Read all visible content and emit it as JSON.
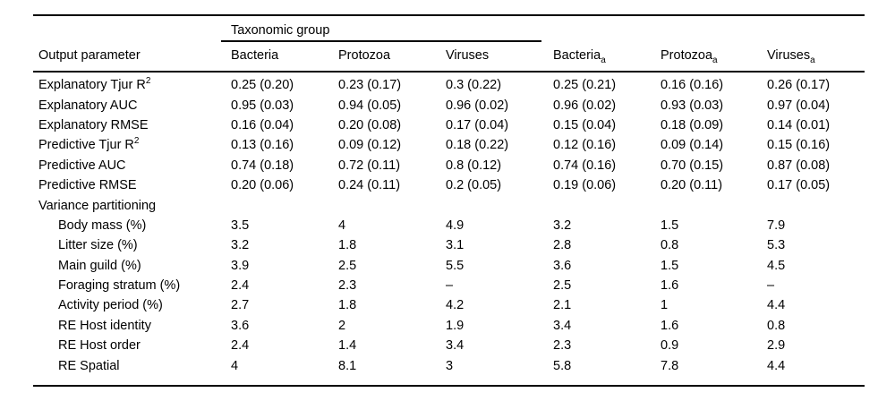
{
  "page": {
    "background": "#ffffff",
    "text_color": "#000000"
  },
  "table": {
    "spanner_label": "Taxonomic group",
    "param_header": "Output parameter",
    "columns": [
      {
        "label": "Bacteria",
        "sub": ""
      },
      {
        "label": "Protozoa",
        "sub": ""
      },
      {
        "label": "Viruses",
        "sub": ""
      },
      {
        "label": "Bacteria",
        "sub": "a"
      },
      {
        "label": "Protozoa",
        "sub": "a"
      },
      {
        "label": "Viruses",
        "sub": "a"
      }
    ],
    "rows": [
      {
        "label": "Explanatory Tjur R",
        "sup": "2",
        "indent": false,
        "values": [
          "0.25 (0.20)",
          "0.23 (0.17)",
          "0.3 (0.22)",
          "0.25 (0.21)",
          "0.16 (0.16)",
          "0.26 (0.17)"
        ]
      },
      {
        "label": "Explanatory AUC",
        "sup": "",
        "indent": false,
        "values": [
          "0.95 (0.03)",
          "0.94 (0.05)",
          "0.96 (0.02)",
          "0.96 (0.02)",
          "0.93 (0.03)",
          "0.97 (0.04)"
        ]
      },
      {
        "label": "Explanatory RMSE",
        "sup": "",
        "indent": false,
        "values": [
          "0.16 (0.04)",
          "0.20 (0.08)",
          "0.17 (0.04)",
          "0.15 (0.04)",
          "0.18 (0.09)",
          "0.14 (0.01)"
        ]
      },
      {
        "label": "Predictive Tjur R",
        "sup": "2",
        "indent": false,
        "values": [
          "0.13 (0.16)",
          "0.09 (0.12)",
          "0.18 (0.22)",
          "0.12 (0.16)",
          "0.09 (0.14)",
          "0.15 (0.16)"
        ]
      },
      {
        "label": "Predictive AUC",
        "sup": "",
        "indent": false,
        "values": [
          "0.74 (0.18)",
          "0.72 (0.11)",
          "0.8 (0.12)",
          "0.74 (0.16)",
          "0.70 (0.15)",
          "0.87 (0.08)"
        ]
      },
      {
        "label": "Predictive RMSE",
        "sup": "",
        "indent": false,
        "values": [
          "0.20 (0.06)",
          "0.24 (0.11)",
          "0.2 (0.05)",
          "0.19 (0.06)",
          "0.20 (0.11)",
          "0.17 (0.05)"
        ]
      },
      {
        "label": "Variance partitioning",
        "sup": "",
        "indent": false,
        "values": [
          "",
          "",
          "",
          "",
          "",
          ""
        ]
      },
      {
        "label": "Body mass (%)",
        "sup": "",
        "indent": true,
        "values": [
          "3.5",
          "4",
          "4.9",
          "3.2",
          "1.5",
          "7.9"
        ]
      },
      {
        "label": "Litter size (%)",
        "sup": "",
        "indent": true,
        "values": [
          "3.2",
          "1.8",
          "3.1",
          "2.8",
          "0.8",
          "5.3"
        ]
      },
      {
        "label": "Main guild (%)",
        "sup": "",
        "indent": true,
        "values": [
          "3.9",
          "2.5",
          "5.5",
          "3.6",
          "1.5",
          "4.5"
        ]
      },
      {
        "label": "Foraging stratum (%)",
        "sup": "",
        "indent": true,
        "values": [
          "2.4",
          "2.3",
          "–",
          "2.5",
          "1.6",
          "–"
        ]
      },
      {
        "label": "Activity period (%)",
        "sup": "",
        "indent": true,
        "values": [
          "2.7",
          "1.8",
          "4.2",
          "2.1",
          "1",
          "4.4"
        ]
      },
      {
        "label": "RE Host identity",
        "sup": "",
        "indent": true,
        "values": [
          "3.6",
          "2",
          "1.9",
          "3.4",
          "1.6",
          "0.8"
        ]
      },
      {
        "label": "RE Host order",
        "sup": "",
        "indent": true,
        "values": [
          "2.4",
          "1.4",
          "3.4",
          "2.3",
          "0.9",
          "2.9"
        ]
      },
      {
        "label": "RE Spatial",
        "sup": "",
        "indent": true,
        "values": [
          "4",
          "8.1",
          "3",
          "5.8",
          "7.8",
          "4.4"
        ]
      }
    ]
  }
}
